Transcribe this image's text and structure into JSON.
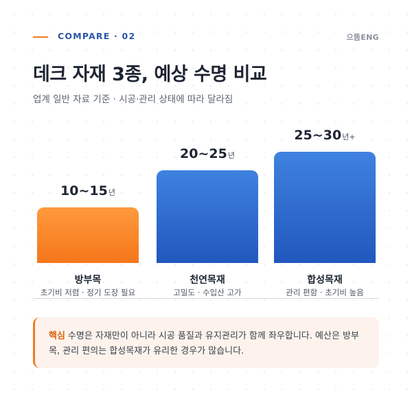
{
  "header": {
    "eyebrow": "COMPARE · 02",
    "brand": "으뜸ENG",
    "title": "데크 자재 3종, 예상 수명 비교",
    "subtitle": "업계 일반 자료 기준 · 시공·관리 상태에 따라 달라짐"
  },
  "chart_data": {
    "type": "bar",
    "categories": [
      "방부목",
      "천연목재",
      "합성목재"
    ],
    "descriptions": [
      "초기비 저렴 · 정기 도장 필요",
      "고밀도 · 수입산 고가",
      "관리 편함 · 초기비 높음"
    ],
    "value_labels": [
      "10~15",
      "20~25",
      "25~30"
    ],
    "unit_labels": [
      "년",
      "년",
      "년+"
    ],
    "values": [
      [
        10,
        15
      ],
      [
        20,
        25
      ],
      [
        25,
        30
      ]
    ],
    "colors": [
      "#f5821f",
      "#2f6fd1",
      "#2f6fd1"
    ]
  },
  "callout": {
    "key": "핵심",
    "text": "수명은 자재만이 아니라 시공 품질과 유지관리가 함께 좌우합니다. 예산은 방부목, 관리 편의는 합성목재가 유리한 경우가 많습니다."
  }
}
